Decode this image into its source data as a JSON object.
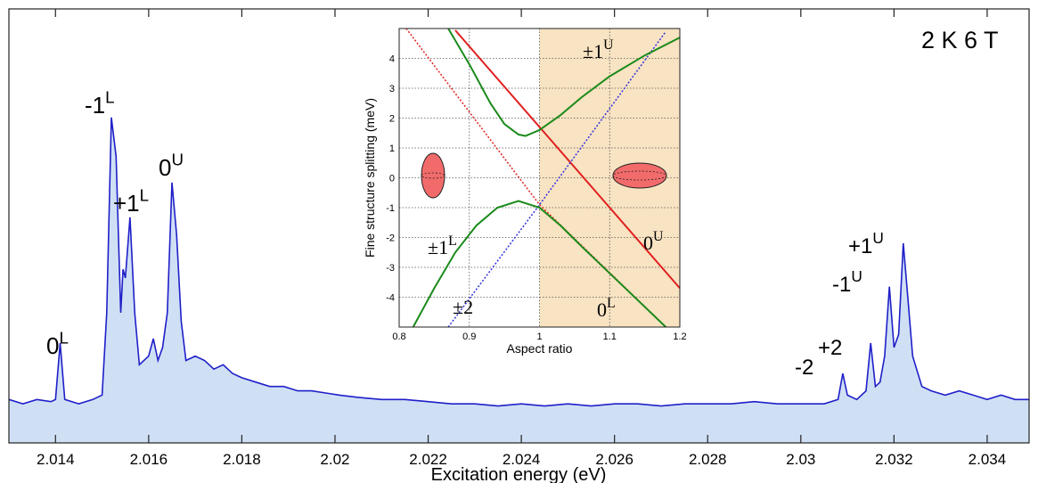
{
  "chart_data": [
    {
      "type": "area",
      "xlabel": "Excitation energy (eV)",
      "x": [
        2.013,
        2.0133,
        2.0136,
        2.0139,
        2.014,
        2.0141,
        2.0142,
        2.0145,
        2.0148,
        2.015,
        2.0151,
        2.0152,
        2.0153,
        2.0154,
        2.01545,
        2.0155,
        2.0156,
        2.0157,
        2.0158,
        2.016,
        2.0161,
        2.0162,
        2.0163,
        2.0164,
        2.0165,
        2.0166,
        2.0167,
        2.0168,
        2.017,
        2.0172,
        2.0174,
        2.0176,
        2.0178,
        2.018,
        2.0183,
        2.0186,
        2.0189,
        2.0192,
        2.0195,
        2.0198,
        2.0201,
        2.0205,
        2.021,
        2.0215,
        2.022,
        2.0225,
        2.023,
        2.0235,
        2.024,
        2.0245,
        2.025,
        2.0255,
        2.026,
        2.0265,
        2.027,
        2.0275,
        2.028,
        2.0285,
        2.029,
        2.0295,
        2.03,
        2.0305,
        2.0308,
        2.0309,
        2.031,
        2.0312,
        2.0314,
        2.0315,
        2.0316,
        2.0317,
        2.0318,
        2.0319,
        2.032,
        2.0321,
        2.0322,
        2.0323,
        2.0324,
        2.0326,
        2.0328,
        2.0331,
        2.0334,
        2.0337,
        2.034,
        2.0343,
        2.0346,
        2.0349
      ],
      "values": [
        0.1,
        0.09,
        0.1,
        0.095,
        0.1,
        0.23,
        0.1,
        0.09,
        0.1,
        0.11,
        0.3,
        0.75,
        0.66,
        0.3,
        0.4,
        0.38,
        0.52,
        0.3,
        0.18,
        0.2,
        0.24,
        0.19,
        0.22,
        0.3,
        0.6,
        0.48,
        0.28,
        0.19,
        0.2,
        0.19,
        0.17,
        0.18,
        0.16,
        0.15,
        0.14,
        0.13,
        0.13,
        0.12,
        0.12,
        0.115,
        0.11,
        0.105,
        0.1,
        0.1,
        0.095,
        0.09,
        0.09,
        0.085,
        0.09,
        0.085,
        0.09,
        0.085,
        0.09,
        0.09,
        0.085,
        0.09,
        0.09,
        0.09,
        0.095,
        0.09,
        0.09,
        0.09,
        0.1,
        0.16,
        0.11,
        0.1,
        0.12,
        0.23,
        0.13,
        0.14,
        0.2,
        0.36,
        0.22,
        0.25,
        0.46,
        0.33,
        0.2,
        0.13,
        0.12,
        0.11,
        0.12,
        0.11,
        0.1,
        0.11,
        0.1,
        0.1
      ],
      "color": "#1f1fc8",
      "fill": "#cfe0f5",
      "xlim": [
        2.013,
        2.0349
      ],
      "ylim": [
        0,
        1
      ],
      "xticks": [
        2.014,
        2.016,
        2.018,
        2.02,
        2.022,
        2.024,
        2.026,
        2.028,
        2.03,
        2.032,
        2.034
      ],
      "annotations": [
        {
          "text": "0",
          "sup": "L"
        },
        {
          "text": "-1",
          "sup": "L"
        },
        {
          "text": "+1",
          "sup": "L"
        },
        {
          "text": "0",
          "sup": "U"
        },
        {
          "text": "-2"
        },
        {
          "text": "+2"
        },
        {
          "text": "-1",
          "sup": "U"
        },
        {
          "text": "+1",
          "sup": "U"
        },
        {
          "text": "2 K  6 T"
        }
      ]
    },
    {
      "type": "line",
      "xlabel": "Aspect ratio",
      "ylabel": "Fine structure splitting (meV)",
      "xlim": [
        0.8,
        1.2
      ],
      "ylim": [
        -5,
        5
      ],
      "xticks": [
        0.8,
        0.9,
        1,
        1.1,
        1.2
      ],
      "yticks": [
        -4,
        -3,
        -2,
        -1,
        0,
        1,
        2,
        3,
        4
      ],
      "grid": true,
      "shaded_xlim": [
        1,
        1.2
      ],
      "shaded_color": "#f8e3c2",
      "series": [
        {
          "color": "#e02020",
          "dash": false,
          "x": [
            0.88,
            1.0,
            1.2
          ],
          "values": [
            4.94,
            1.7,
            -3.7
          ]
        },
        {
          "color": "#e02020",
          "dash": true,
          "x": [
            0.81,
            1.0,
            1.18
          ],
          "values": [
            5,
            -0.9,
            -5
          ]
        },
        {
          "color": "#3030e0",
          "dash": true,
          "x": [
            0.87,
            1.0,
            1.18
          ],
          "values": [
            -5,
            -0.9,
            4.9
          ]
        },
        {
          "color": "#1a8a1a",
          "dash": false,
          "x": [
            0.87,
            0.9,
            0.93,
            0.95,
            0.97,
            0.98,
            1.0,
            1.03,
            1.06,
            1.1,
            1.15,
            1.2
          ],
          "values": [
            5,
            3.8,
            2.5,
            1.8,
            1.45,
            1.4,
            1.6,
            2.1,
            2.7,
            3.4,
            4.1,
            4.7
          ]
        },
        {
          "color": "#1a8a1a",
          "dash": false,
          "x": [
            0.82,
            0.85,
            0.88,
            0.91,
            0.94,
            0.97,
            1.0,
            1.03,
            1.06,
            1.1,
            1.14,
            1.18
          ],
          "values": [
            -5,
            -3.7,
            -2.5,
            -1.6,
            -1.0,
            -0.78,
            -1.0,
            -1.6,
            -2.3,
            -3.2,
            -4.1,
            -5
          ]
        }
      ],
      "annotations": [
        {
          "text": "±1",
          "sup": "U"
        },
        {
          "text": "±1",
          "sup": "L"
        },
        {
          "text": "±2"
        },
        {
          "text": "0",
          "sup": "U"
        },
        {
          "text": "0",
          "sup": "L"
        }
      ]
    }
  ]
}
